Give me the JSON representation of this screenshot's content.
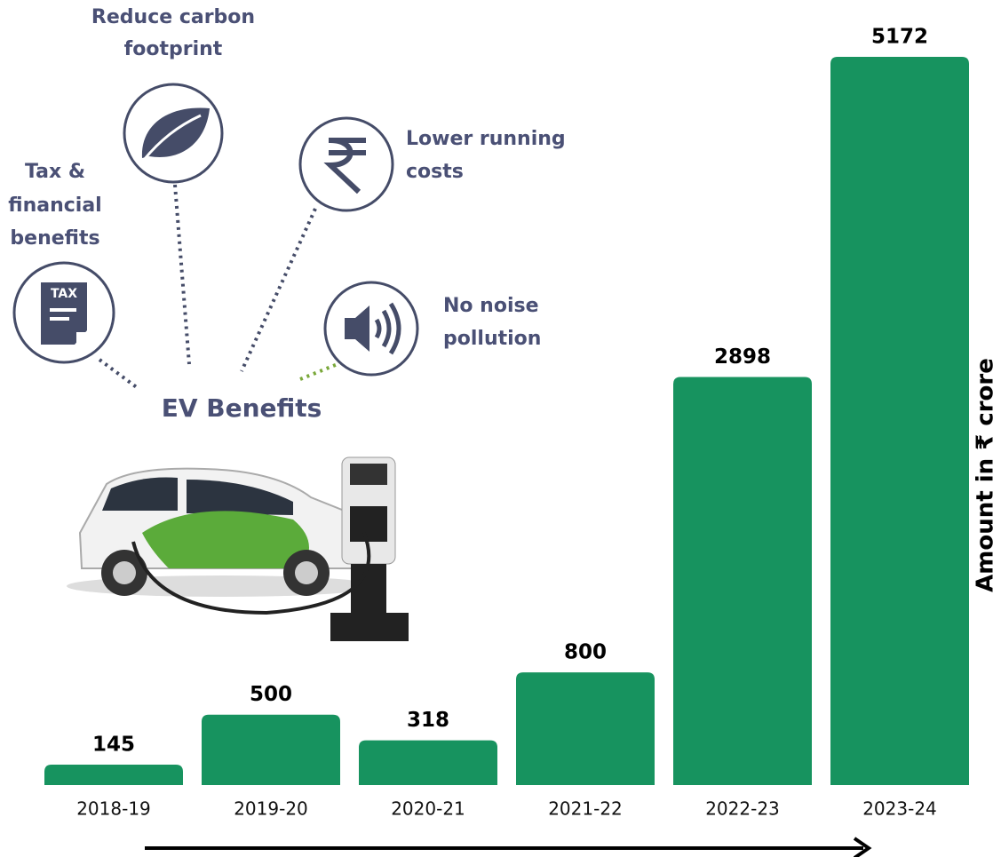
{
  "chart_data": {
    "type": "bar",
    "y_label": "Amount in ₹ crore",
    "categories": [
      "2018-19",
      "2019-20",
      "2020-21",
      "2021-22",
      "2022-23",
      "2023-24"
    ],
    "values": [
      145,
      500,
      318,
      800,
      2898,
      5172
    ],
    "color": "#17935f",
    "ylim": [
      0,
      5172
    ],
    "grid": false,
    "infographic": {
      "title": "EV Benefits",
      "icon_text": "TAX",
      "benefits": [
        {
          "lines": [
            "Reduce carbon",
            "footprint"
          ]
        },
        {
          "lines": [
            "Tax &",
            "financial",
            "benefits"
          ]
        },
        {
          "lines": [
            "Lower running",
            "costs"
          ]
        },
        {
          "lines": [
            "No noise",
            "pollution"
          ]
        }
      ]
    }
  }
}
